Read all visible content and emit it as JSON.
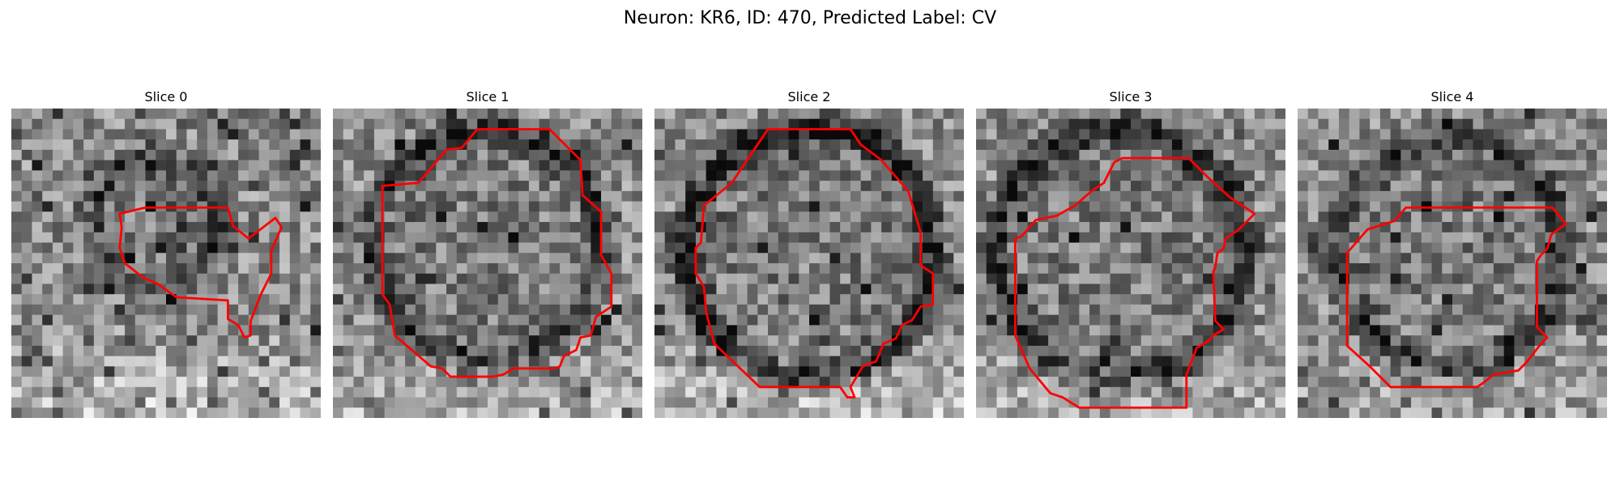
{
  "figure": {
    "title": "Neuron: KR6, ID: 470, Predicted Label: CV"
  },
  "panels": [
    {
      "title": "Slice 0"
    },
    {
      "title": "Slice 1"
    },
    {
      "title": "Slice 2"
    },
    {
      "title": "Slice 3"
    },
    {
      "title": "Slice 4"
    }
  ],
  "colors": {
    "contour": "#ff0000"
  }
}
